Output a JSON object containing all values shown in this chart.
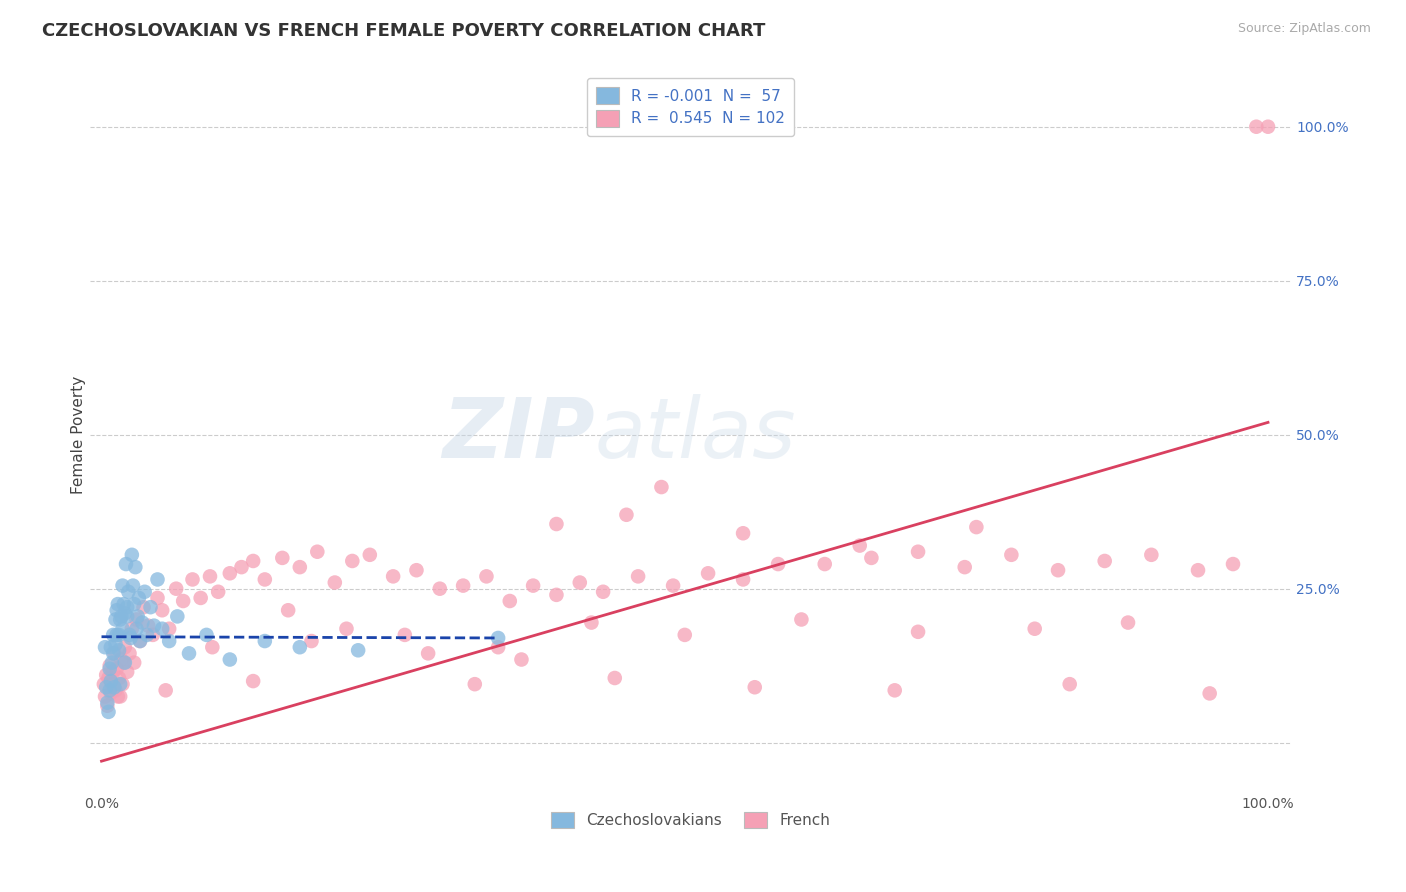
{
  "title": "CZECHOSLOVAKIAN VS FRENCH FEMALE POVERTY CORRELATION CHART",
  "source": "Source: ZipAtlas.com",
  "ylabel": "Female Poverty",
  "xlabel": "",
  "xlim": [
    -0.01,
    1.02
  ],
  "ylim": [
    -0.08,
    1.08
  ],
  "ytick_positions": [
    0.0,
    0.25,
    0.5,
    0.75,
    1.0
  ],
  "ytick_labels": [
    "",
    "25.0%",
    "50.0%",
    "75.0%",
    "100.0%"
  ],
  "xtick_positions": [
    0.0,
    1.0
  ],
  "xtick_labels": [
    "0.0%",
    "100.0%"
  ],
  "legend_R1": "-0.001",
  "legend_N1": "57",
  "legend_R2": "0.545",
  "legend_N2": "102",
  "color_blue": "#85b8de",
  "color_pink": "#f5a0b5",
  "line_blue": "#1a44aa",
  "line_pink": "#d94060",
  "grid_color": "#cccccc",
  "background_color": "#ffffff",
  "watermark": "ZIPatlas",
  "blue_x": [
    0.003,
    0.004,
    0.005,
    0.006,
    0.007,
    0.007,
    0.008,
    0.008,
    0.009,
    0.01,
    0.01,
    0.011,
    0.012,
    0.012,
    0.013,
    0.013,
    0.014,
    0.015,
    0.015,
    0.016,
    0.016,
    0.017,
    0.018,
    0.018,
    0.019,
    0.02,
    0.02,
    0.021,
    0.022,
    0.022,
    0.023,
    0.024,
    0.025,
    0.026,
    0.027,
    0.028,
    0.029,
    0.03,
    0.031,
    0.032,
    0.033,
    0.035,
    0.037,
    0.039,
    0.042,
    0.045,
    0.048,
    0.052,
    0.058,
    0.065,
    0.075,
    0.09,
    0.11,
    0.14,
    0.17,
    0.22,
    0.34
  ],
  "blue_y": [
    0.155,
    0.09,
    0.065,
    0.05,
    0.085,
    0.12,
    0.1,
    0.155,
    0.13,
    0.145,
    0.175,
    0.09,
    0.16,
    0.2,
    0.175,
    0.215,
    0.225,
    0.15,
    0.175,
    0.095,
    0.2,
    0.205,
    0.255,
    0.185,
    0.225,
    0.13,
    0.21,
    0.29,
    0.22,
    0.205,
    0.245,
    0.175,
    0.17,
    0.305,
    0.255,
    0.225,
    0.285,
    0.185,
    0.205,
    0.235,
    0.165,
    0.195,
    0.245,
    0.175,
    0.22,
    0.19,
    0.265,
    0.185,
    0.165,
    0.205,
    0.145,
    0.175,
    0.135,
    0.165,
    0.155,
    0.15,
    0.17
  ],
  "pink_x": [
    0.002,
    0.003,
    0.004,
    0.005,
    0.006,
    0.007,
    0.008,
    0.009,
    0.01,
    0.011,
    0.012,
    0.013,
    0.014,
    0.015,
    0.016,
    0.017,
    0.018,
    0.019,
    0.02,
    0.022,
    0.024,
    0.026,
    0.028,
    0.03,
    0.033,
    0.036,
    0.04,
    0.044,
    0.048,
    0.052,
    0.058,
    0.064,
    0.07,
    0.078,
    0.085,
    0.093,
    0.1,
    0.11,
    0.12,
    0.13,
    0.14,
    0.155,
    0.17,
    0.185,
    0.2,
    0.215,
    0.23,
    0.25,
    0.27,
    0.29,
    0.31,
    0.33,
    0.35,
    0.37,
    0.39,
    0.41,
    0.43,
    0.46,
    0.49,
    0.52,
    0.55,
    0.58,
    0.62,
    0.66,
    0.7,
    0.74,
    0.78,
    0.82,
    0.86,
    0.9,
    0.94,
    0.97,
    0.99,
    1.0,
    0.48,
    0.39,
    0.45,
    0.55,
    0.65,
    0.75,
    0.16,
    0.21,
    0.26,
    0.34,
    0.42,
    0.5,
    0.6,
    0.7,
    0.8,
    0.88,
    0.095,
    0.18,
    0.28,
    0.36,
    0.055,
    0.13,
    0.32,
    0.44,
    0.56,
    0.68,
    0.83,
    0.95
  ],
  "pink_y": [
    0.095,
    0.075,
    0.11,
    0.06,
    0.105,
    0.125,
    0.08,
    0.095,
    0.115,
    0.145,
    0.085,
    0.12,
    0.075,
    0.105,
    0.075,
    0.135,
    0.095,
    0.13,
    0.155,
    0.115,
    0.145,
    0.185,
    0.13,
    0.2,
    0.165,
    0.22,
    0.19,
    0.175,
    0.235,
    0.215,
    0.185,
    0.25,
    0.23,
    0.265,
    0.235,
    0.27,
    0.245,
    0.275,
    0.285,
    0.295,
    0.265,
    0.3,
    0.285,
    0.31,
    0.26,
    0.295,
    0.305,
    0.27,
    0.28,
    0.25,
    0.255,
    0.27,
    0.23,
    0.255,
    0.24,
    0.26,
    0.245,
    0.27,
    0.255,
    0.275,
    0.265,
    0.29,
    0.29,
    0.3,
    0.31,
    0.285,
    0.305,
    0.28,
    0.295,
    0.305,
    0.28,
    0.29,
    1.0,
    1.0,
    0.415,
    0.355,
    0.37,
    0.34,
    0.32,
    0.35,
    0.215,
    0.185,
    0.175,
    0.155,
    0.195,
    0.175,
    0.2,
    0.18,
    0.185,
    0.195,
    0.155,
    0.165,
    0.145,
    0.135,
    0.085,
    0.1,
    0.095,
    0.105,
    0.09,
    0.085,
    0.095,
    0.08
  ],
  "blue_trend_x": [
    0.0,
    0.34
  ],
  "blue_trend_y": [
    0.172,
    0.17
  ],
  "pink_trend_x": [
    0.0,
    1.0
  ],
  "pink_trend_y": [
    -0.03,
    0.52
  ]
}
